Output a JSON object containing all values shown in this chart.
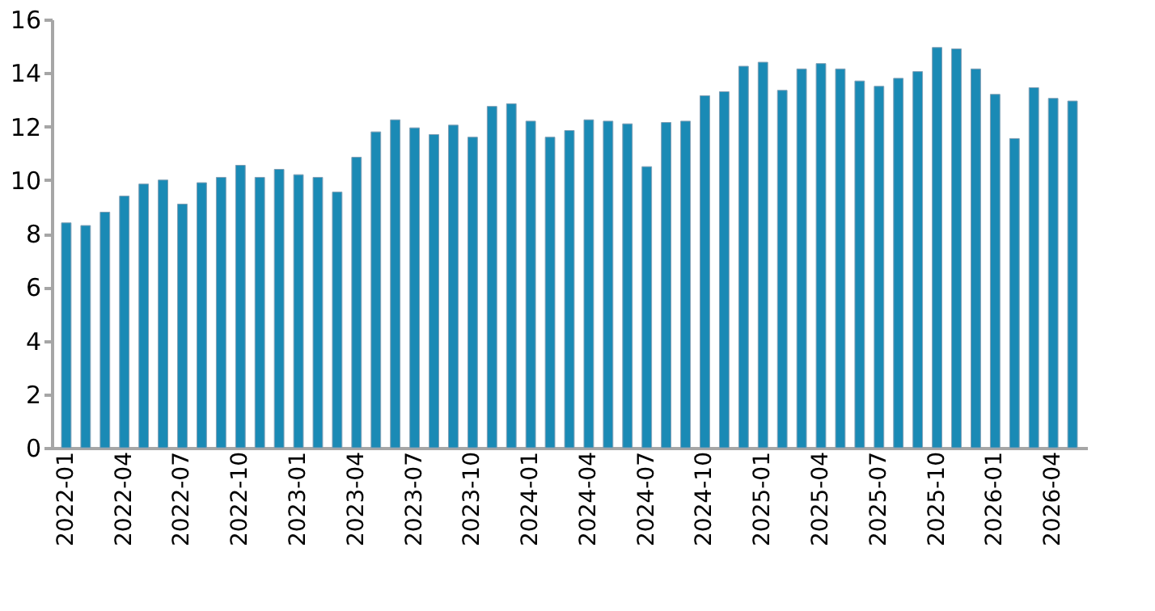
{
  "chart_data": {
    "type": "bar",
    "categories": [
      "2022-01",
      null,
      null,
      "2022-04",
      null,
      null,
      "2022-07",
      null,
      null,
      "2022-10",
      null,
      null,
      "2023-01",
      null,
      null,
      "2023-04",
      null,
      null,
      "2023-07",
      null,
      null,
      "2023-10",
      null,
      null,
      "2024-01",
      null,
      null,
      "2024-04",
      null,
      null,
      "2024-07",
      null,
      null,
      "2024-10",
      null,
      null,
      "2025-01",
      null,
      null,
      "2025-04",
      null,
      null,
      "2025-07",
      null,
      null,
      "2025-10",
      null,
      null,
      "2026-01",
      null,
      null,
      "2026-04",
      null
    ],
    "values": [
      8.4,
      8.3,
      8.8,
      9.4,
      9.85,
      10.0,
      9.1,
      9.9,
      10.1,
      10.55,
      10.1,
      10.4,
      10.2,
      10.1,
      9.55,
      10.85,
      11.8,
      12.25,
      11.95,
      11.7,
      12.05,
      11.6,
      12.75,
      12.85,
      12.2,
      11.6,
      11.85,
      12.25,
      12.2,
      12.1,
      10.5,
      12.15,
      12.2,
      13.15,
      13.3,
      14.25,
      14.4,
      13.35,
      14.15,
      14.35,
      14.15,
      13.7,
      13.5,
      13.8,
      14.05,
      14.95,
      14.9,
      14.15,
      13.2,
      11.55,
      13.45,
      13.05,
      12.95
    ],
    "color": "#1a8ab5",
    "ylim": [
      0,
      16
    ],
    "yticks": [
      0,
      2,
      4,
      6,
      8,
      10,
      12,
      14,
      16
    ],
    "grid": false
  }
}
